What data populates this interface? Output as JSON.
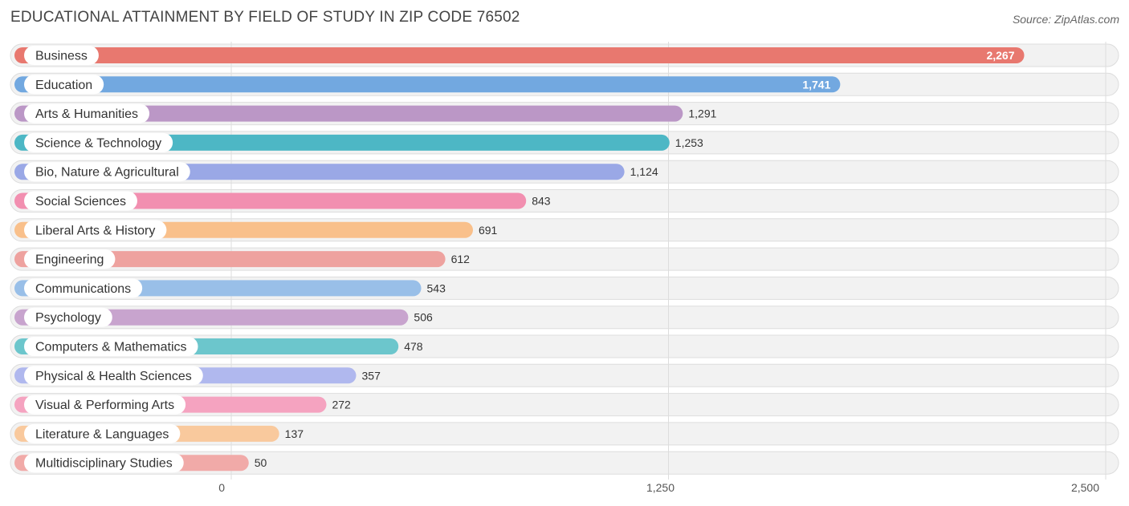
{
  "chart_data": {
    "type": "bar",
    "orientation": "horizontal",
    "title": "EDUCATIONAL ATTAINMENT BY FIELD OF STUDY IN ZIP CODE 76502",
    "source": "Source: ZipAtlas.com",
    "xlabel": "",
    "ylabel": "",
    "xlim": [
      0,
      2500
    ],
    "ticks": [
      0,
      1250,
      2500
    ],
    "tick_labels": [
      "0",
      "1,250",
      "2,500"
    ],
    "grid": true,
    "categories": [
      "Business",
      "Education",
      "Arts & Humanities",
      "Science & Technology",
      "Bio, Nature & Agricultural",
      "Social Sciences",
      "Liberal Arts & History",
      "Engineering",
      "Communications",
      "Psychology",
      "Computers & Mathematics",
      "Physical & Health Sciences",
      "Visual & Performing Arts",
      "Literature & Languages",
      "Multidisciplinary Studies"
    ],
    "values": [
      2267,
      1741,
      1291,
      1253,
      1124,
      843,
      691,
      612,
      543,
      506,
      478,
      357,
      272,
      137,
      50
    ],
    "value_labels": [
      "2,267",
      "1,741",
      "1,291",
      "1,253",
      "1,124",
      "843",
      "691",
      "612",
      "543",
      "506",
      "478",
      "357",
      "272",
      "137",
      "50"
    ],
    "colors": [
      "#e8786f",
      "#72a8e0",
      "#bb97c6",
      "#4db7c5",
      "#9aa8e6",
      "#f28fb0",
      "#f9c08b",
      "#eea29f",
      "#99bfe8",
      "#c8a4ce",
      "#6cc6cc",
      "#b0b8ee",
      "#f5a3c0",
      "#f9c99d",
      "#f1aaa8"
    ]
  }
}
